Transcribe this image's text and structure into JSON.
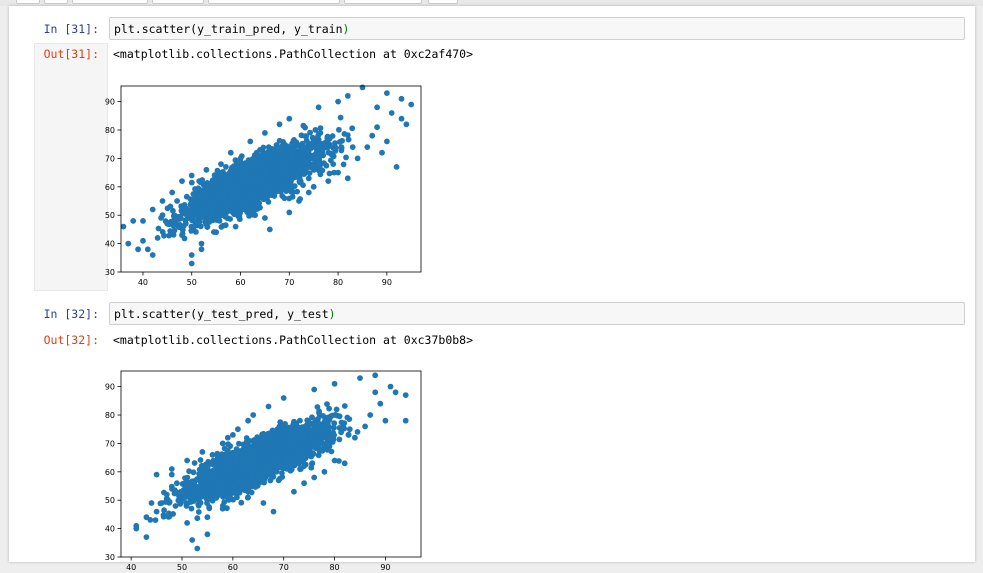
{
  "cells": [
    {
      "in_prompt": "In [31]:",
      "code": {
        "fn": "plt.scatter",
        "open": "(",
        "args": "y_train_pred, y_train",
        "close": ")"
      },
      "out_prompt": "Out[31]:",
      "output_text": "<matplotlib.collections.PathCollection at 0xc2af470>"
    },
    {
      "in_prompt": "In [32]:",
      "code": {
        "fn": "plt.scatter",
        "open": "(",
        "args": "y_test_pred, y_test",
        "close": ")"
      },
      "out_prompt": "Out[32]:",
      "output_text": "<matplotlib.collections.PathCollection at 0xc37b0b8>"
    }
  ],
  "colors": {
    "marker": "#1f77b4",
    "in_prompt": "#303f9f",
    "out_prompt": "#d84315"
  },
  "chart_data": [
    {
      "type": "scatter",
      "xticks": [
        40,
        50,
        60,
        70,
        80,
        90
      ],
      "yticks": [
        30,
        40,
        50,
        60,
        70,
        80,
        90
      ],
      "xlim": [
        35.5,
        97
      ],
      "ylim": [
        30,
        95.5
      ],
      "grid": false,
      "cloud": {
        "slope": 0.82,
        "intercept": 10.5,
        "spread": 5.5,
        "x_mean": 63,
        "x_sd": 9.5
      },
      "points": [
        [
          36,
          46
        ],
        [
          38,
          48
        ],
        [
          37,
          40
        ],
        [
          39,
          38
        ],
        [
          40,
          41
        ],
        [
          41,
          38
        ],
        [
          42,
          36
        ],
        [
          40,
          48
        ],
        [
          43,
          42
        ],
        [
          44,
          50
        ],
        [
          45,
          47
        ],
        [
          46,
          44
        ],
        [
          48,
          43
        ],
        [
          47,
          55
        ],
        [
          50,
          36
        ],
        [
          50,
          33
        ],
        [
          52,
          38
        ],
        [
          55,
          62
        ],
        [
          57,
          67
        ],
        [
          60,
          70
        ],
        [
          62,
          76
        ],
        [
          64,
          73
        ],
        [
          65,
          49
        ],
        [
          66,
          45
        ],
        [
          70,
          51
        ],
        [
          72,
          55
        ],
        [
          74,
          58
        ],
        [
          75,
          60
        ],
        [
          78,
          62
        ],
        [
          80,
          65
        ],
        [
          82,
          63
        ],
        [
          84,
          70
        ],
        [
          86,
          74
        ],
        [
          88,
          88
        ],
        [
          89,
          72
        ],
        [
          90,
          76
        ],
        [
          92,
          67
        ],
        [
          93,
          84
        ],
        [
          94,
          82
        ],
        [
          95,
          89
        ],
        [
          93,
          91
        ],
        [
          90,
          93
        ],
        [
          85,
          95
        ],
        [
          82,
          92
        ],
        [
          80,
          90
        ],
        [
          76,
          88
        ],
        [
          70,
          84
        ],
        [
          68,
          82
        ],
        [
          65,
          79
        ],
        [
          58,
          72
        ],
        [
          56,
          68
        ],
        [
          53,
          66
        ],
        [
          50,
          64
        ],
        [
          48,
          62
        ],
        [
          46,
          58
        ],
        [
          44,
          55
        ],
        [
          42,
          52
        ],
        [
          87,
          78
        ],
        [
          91,
          86
        ],
        [
          88,
          81
        ],
        [
          83,
          74
        ],
        [
          79,
          68
        ],
        [
          74,
          63
        ],
        [
          69,
          56
        ],
        [
          63,
          50
        ],
        [
          59,
          46
        ],
        [
          55,
          44
        ],
        [
          52,
          40
        ]
      ]
    },
    {
      "type": "scatter",
      "xticks": [
        40,
        50,
        60,
        70,
        80,
        90
      ],
      "yticks": [
        30,
        40,
        50,
        60,
        70,
        80,
        90
      ],
      "xlim": [
        38,
        97
      ],
      "ylim": [
        30,
        95.5
      ],
      "grid": false,
      "cloud": {
        "slope": 0.8,
        "intercept": 12,
        "spread": 5.2,
        "x_mean": 65,
        "x_sd": 9.2
      },
      "points": [
        [
          41,
          41
        ],
        [
          41,
          40
        ],
        [
          43,
          44
        ],
        [
          43,
          37
        ],
        [
          44,
          49
        ],
        [
          45,
          46
        ],
        [
          45,
          59
        ],
        [
          46,
          49
        ],
        [
          48,
          59
        ],
        [
          47,
          52
        ],
        [
          49,
          56
        ],
        [
          50,
          53
        ],
        [
          51,
          42
        ],
        [
          52,
          36
        ],
        [
          53,
          33
        ],
        [
          55,
          38
        ],
        [
          56,
          66
        ],
        [
          59,
          72
        ],
        [
          61,
          75
        ],
        [
          63,
          78
        ],
        [
          66,
          49
        ],
        [
          68,
          46
        ],
        [
          72,
          53
        ],
        [
          74,
          56
        ],
        [
          76,
          58
        ],
        [
          78,
          60
        ],
        [
          80,
          64
        ],
        [
          82,
          63
        ],
        [
          84,
          72
        ],
        [
          86,
          76
        ],
        [
          88,
          88
        ],
        [
          90,
          78
        ],
        [
          92,
          88
        ],
        [
          94,
          87
        ],
        [
          94,
          78
        ],
        [
          91,
          90
        ],
        [
          88,
          94
        ],
        [
          85,
          93
        ],
        [
          80,
          91
        ],
        [
          76,
          89
        ],
        [
          70,
          86
        ],
        [
          67,
          83
        ],
        [
          64,
          80
        ],
        [
          60,
          73
        ],
        [
          58,
          70
        ],
        [
          54,
          67
        ],
        [
          51,
          64
        ],
        [
          48,
          61
        ],
        [
          87,
          80
        ],
        [
          89,
          84
        ],
        [
          83,
          75
        ],
        [
          79,
          69
        ],
        [
          74,
          62
        ],
        [
          69,
          57
        ],
        [
          63,
          51
        ],
        [
          58,
          47
        ],
        [
          55,
          44
        ]
      ]
    }
  ]
}
